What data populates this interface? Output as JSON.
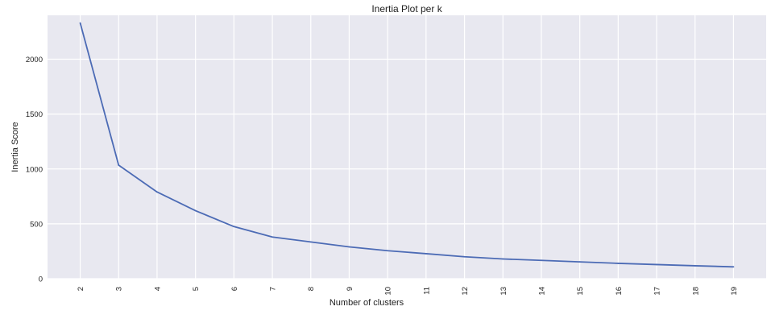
{
  "chart_data": {
    "type": "line",
    "title": "Inertia Plot per k",
    "xlabel": "Number of clusters",
    "ylabel": "Inertia Score",
    "x": [
      2,
      3,
      4,
      5,
      6,
      7,
      8,
      9,
      10,
      11,
      12,
      13,
      14,
      15,
      16,
      17,
      18,
      19
    ],
    "x_tick_labels": [
      "2",
      "3",
      "4",
      "5",
      "6",
      "7",
      "8",
      "9",
      "10",
      "11",
      "12",
      "13",
      "14",
      "15",
      "16",
      "17",
      "18",
      "19"
    ],
    "series": [
      {
        "values": [
          2330,
          1035,
          790,
          620,
          475,
          380,
          335,
          290,
          255,
          228,
          200,
          180,
          167,
          153,
          140,
          129,
          118,
          108
        ]
      }
    ],
    "yticks": [
      0,
      500,
      1000,
      1500,
      2000
    ],
    "y_tick_labels": [
      "0",
      "500",
      "1000",
      "1500",
      "2000"
    ],
    "ylim": [
      0,
      2400
    ],
    "xlim": [
      1.15,
      19.85
    ],
    "grid": true,
    "x_tick_rotation": "vertical",
    "colors": {
      "line": "#4c6bb5",
      "plot_background": "#e8e8f0",
      "grid": "#ffffff"
    }
  }
}
